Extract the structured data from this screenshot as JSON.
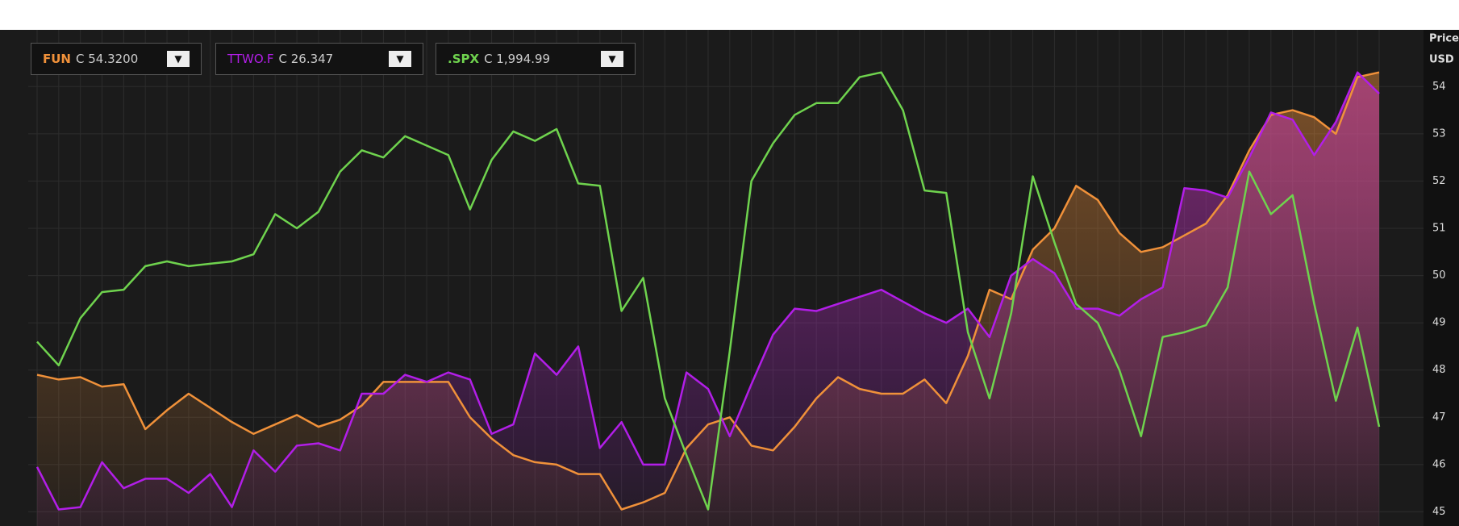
{
  "chart_data": {
    "type": "line",
    "y_axis_label": [
      "Price",
      "USD"
    ],
    "ylim": [
      44.7,
      55.2
    ],
    "yticks": [
      45,
      46,
      47,
      48,
      49,
      50,
      51,
      52,
      53,
      54
    ],
    "grid": true,
    "series": [
      {
        "name": "FUN",
        "last": "C 54.3200",
        "color": "#f0913a",
        "area": true,
        "values": [
          47.9,
          47.8,
          47.85,
          47.65,
          47.7,
          46.75,
          47.15,
          47.5,
          47.2,
          46.9,
          46.65,
          46.85,
          47.05,
          46.8,
          46.95,
          47.25,
          47.75,
          47.75,
          47.75,
          47.75,
          47.0,
          46.55,
          46.2,
          46.05,
          46.0,
          45.8,
          45.8,
          45.05,
          45.2,
          45.4,
          46.35,
          46.85,
          47.0,
          46.4,
          46.3,
          46.8,
          47.4,
          47.85,
          47.6,
          47.5,
          47.5,
          47.8,
          47.3,
          48.3,
          49.7,
          49.5,
          50.55,
          51.0,
          51.9,
          51.6,
          50.9,
          50.5,
          50.6,
          50.85,
          51.1,
          51.7,
          52.65,
          53.4,
          53.5,
          53.35,
          53.0,
          54.2,
          54.3
        ]
      },
      {
        "name": "TTWO.F",
        "last": "C 26.347",
        "color": "#b21ee8",
        "area": true,
        "values": [
          45.95,
          45.05,
          45.1,
          46.05,
          45.5,
          45.7,
          45.7,
          45.4,
          45.8,
          45.1,
          46.3,
          45.85,
          46.4,
          46.45,
          46.3,
          47.5,
          47.5,
          47.9,
          47.75,
          47.95,
          47.8,
          46.65,
          46.85,
          48.35,
          47.9,
          48.5,
          46.35,
          46.9,
          46.0,
          46.0,
          47.95,
          47.6,
          46.6,
          47.7,
          48.75,
          49.3,
          49.25,
          49.4,
          49.55,
          49.7,
          49.45,
          49.2,
          49.0,
          49.3,
          48.7,
          50.0,
          50.35,
          50.05,
          49.3,
          49.3,
          49.15,
          49.5,
          49.75,
          51.85,
          51.8,
          51.65,
          52.5,
          53.45,
          53.3,
          52.55,
          53.25,
          54.3,
          53.85
        ]
      },
      {
        "name": ".SPX",
        "last": "C 1,994.99",
        "color": "#6fd34e",
        "area": false,
        "values": [
          48.6,
          48.1,
          49.1,
          49.65,
          49.7,
          50.2,
          50.3,
          50.2,
          50.25,
          50.3,
          50.45,
          51.3,
          51.0,
          51.35,
          52.2,
          52.65,
          52.5,
          52.95,
          52.75,
          52.55,
          51.4,
          52.45,
          53.05,
          52.85,
          53.1,
          51.95,
          51.9,
          49.25,
          49.95,
          47.4,
          46.2,
          45.05,
          48.4,
          52.0,
          52.8,
          53.4,
          53.65,
          53.65,
          54.2,
          54.3,
          53.5,
          51.8,
          51.75,
          48.8,
          47.4,
          49.2,
          52.1,
          50.7,
          49.4,
          49.0,
          48.0,
          46.6,
          48.7,
          48.8,
          48.95,
          49.75,
          52.2,
          51.3,
          51.7,
          49.4,
          47.35,
          48.9,
          46.8
        ]
      }
    ]
  }
}
